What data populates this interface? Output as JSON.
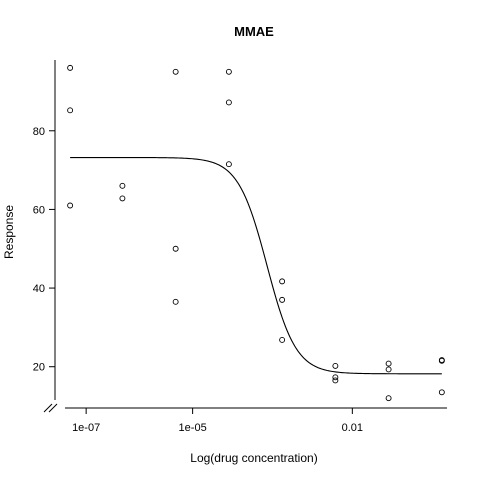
{
  "chart_data": {
    "type": "scatter",
    "title": "MMAE",
    "xlabel": "Log(drug concentration)",
    "ylabel": "Response",
    "x_scale": "log10",
    "xlim": [
      2.6e-08,
      0.6
    ],
    "ylim": [
      9.5,
      98
    ],
    "x_ticks": [
      {
        "value": 1e-07,
        "label": "1e-07"
      },
      {
        "value": 1e-05,
        "label": "1e-05"
      },
      {
        "value": 0.01,
        "label": "0.01"
      }
    ],
    "y_ticks": [
      {
        "value": 20,
        "label": "20"
      },
      {
        "value": 40,
        "label": "40"
      },
      {
        "value": 60,
        "label": "60"
      },
      {
        "value": 80,
        "label": "80"
      }
    ],
    "axis_break": true,
    "grid": false,
    "points": [
      {
        "x": 5e-08,
        "y": 96
      },
      {
        "x": 5e-08,
        "y": 85.2
      },
      {
        "x": 5e-08,
        "y": 61
      },
      {
        "x": 4.8e-07,
        "y": 66
      },
      {
        "x": 4.8e-07,
        "y": 62.8
      },
      {
        "x": 4.8e-06,
        "y": 95
      },
      {
        "x": 4.8e-06,
        "y": 50
      },
      {
        "x": 4.8e-06,
        "y": 36.5
      },
      {
        "x": 4.8e-05,
        "y": 95
      },
      {
        "x": 4.8e-05,
        "y": 87.2
      },
      {
        "x": 4.8e-05,
        "y": 71.5
      },
      {
        "x": 0.00048,
        "y": 41.7
      },
      {
        "x": 0.00048,
        "y": 37
      },
      {
        "x": 0.00048,
        "y": 26.8
      },
      {
        "x": 0.0048,
        "y": 20.2
      },
      {
        "x": 0.0048,
        "y": 17.3
      },
      {
        "x": 0.0048,
        "y": 16.5
      },
      {
        "x": 0.048,
        "y": 20.8
      },
      {
        "x": 0.048,
        "y": 19.3
      },
      {
        "x": 0.048,
        "y": 12
      },
      {
        "x": 0.48,
        "y": 21.7
      },
      {
        "x": 0.48,
        "y": 21.5
      },
      {
        "x": 0.48,
        "y": 13.5
      }
    ],
    "fit_curve": {
      "model": "four-parameter logistic",
      "top": 73.2,
      "bottom": 18.2,
      "ec50": 0.00025,
      "hill": 1.6,
      "x_range": [
        5e-08,
        0.48
      ]
    }
  }
}
